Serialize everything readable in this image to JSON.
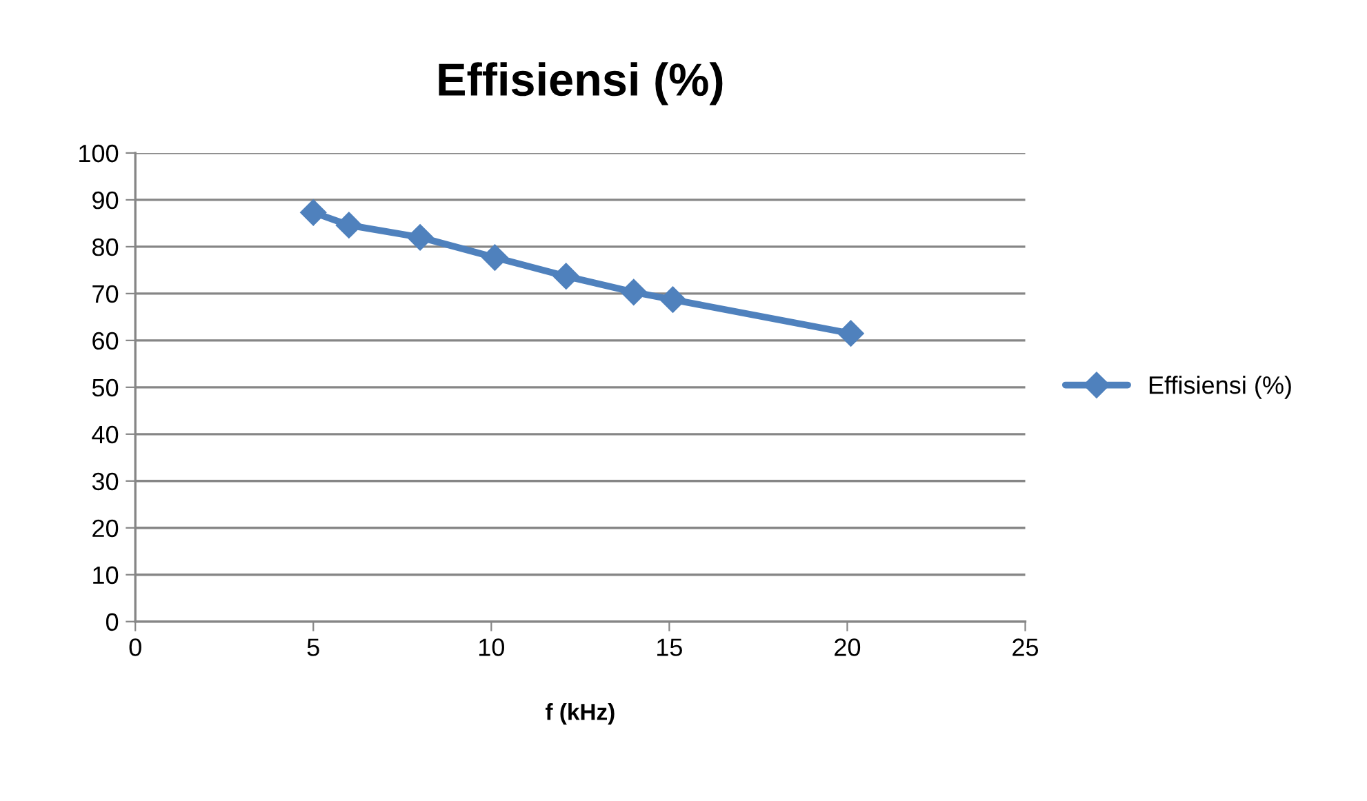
{
  "chart_data": {
    "type": "line",
    "title": "Effisiensi (%)",
    "xlabel": "f (kHz)",
    "x": [
      5,
      6,
      8,
      10.1,
      12.1,
      14,
      15.1,
      20.1
    ],
    "series": [
      {
        "name": "Effisiensi (%)",
        "color": "#4f81bd",
        "values": [
          87.3,
          84.6,
          82.0,
          77.7,
          73.7,
          70.3,
          68.7,
          61.5
        ]
      }
    ],
    "xlim": [
      0,
      25
    ],
    "xticks": [
      0,
      5,
      10,
      15,
      20,
      25
    ],
    "ylim": [
      0,
      100
    ],
    "yticks": [
      0,
      10,
      20,
      30,
      40,
      50,
      60,
      70,
      80,
      90,
      100
    ],
    "grid": "y",
    "legend": "right",
    "marker": "diamond",
    "line_style": "solid"
  }
}
